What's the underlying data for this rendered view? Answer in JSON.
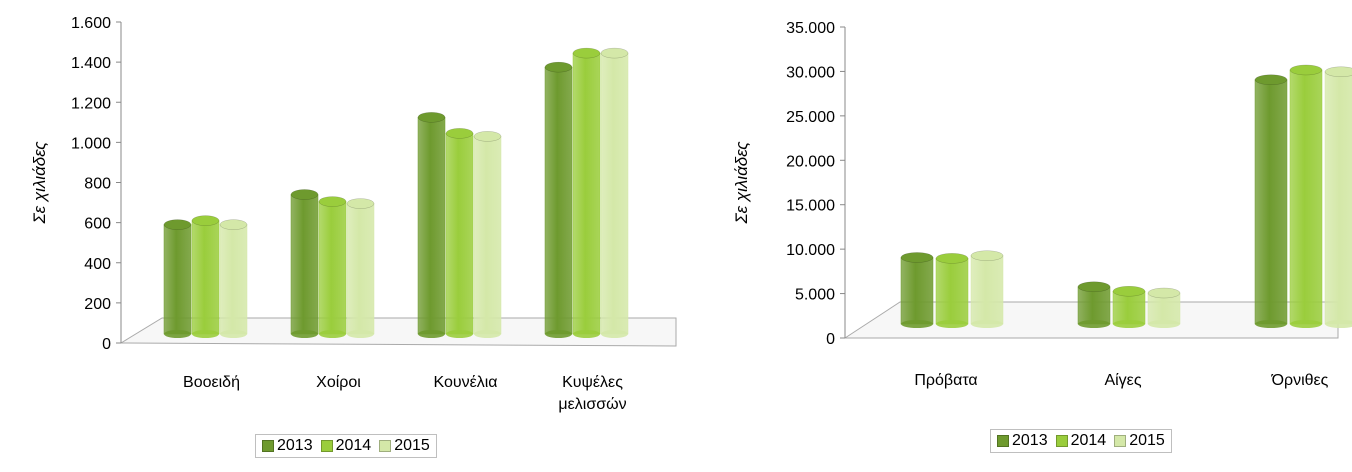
{
  "series_colors": [
    "#6e9a2e",
    "#9acd3c",
    "#d4e8a8"
  ],
  "chart_data": [
    {
      "type": "bar",
      "title": "",
      "xlabel": "",
      "ylabel": "Σε χιλιάδες",
      "categories": [
        [
          "Βοοειδή"
        ],
        [
          "Χοίροι"
        ],
        [
          "Κουνέλια"
        ],
        [
          "Κυψέλες",
          "μελισσών"
        ]
      ],
      "series": [
        {
          "name": "2013",
          "values": [
            565,
            715,
            1100,
            1350
          ]
        },
        {
          "name": "2014",
          "values": [
            585,
            680,
            1020,
            1420
          ]
        },
        {
          "name": "2015",
          "values": [
            565,
            670,
            1005,
            1420
          ]
        }
      ],
      "ylim": [
        0,
        1600
      ],
      "yticks": [
        0,
        200,
        400,
        600,
        800,
        1000,
        1200,
        1400,
        1600
      ],
      "ytick_labels": [
        "0",
        "200",
        "400",
        "600",
        "800",
        "1.000",
        "1.200",
        "1.400",
        "1.600"
      ],
      "legend_position": "bottom"
    },
    {
      "type": "bar",
      "title": "",
      "xlabel": "",
      "ylabel": "Σε χιλιάδες",
      "categories": [
        [
          "Πρόβατα"
        ],
        [
          "Αίγες"
        ],
        [
          "Όρνιθες"
        ]
      ],
      "series": [
        {
          "name": "2013",
          "values": [
            8500,
            5200,
            28500
          ]
        },
        {
          "name": "2014",
          "values": [
            8400,
            4700,
            29600
          ]
        },
        {
          "name": "2015",
          "values": [
            8700,
            4500,
            29400
          ]
        }
      ],
      "ylim": [
        0,
        35000
      ],
      "yticks": [
        0,
        5000,
        10000,
        15000,
        20000,
        25000,
        30000,
        35000
      ],
      "ytick_labels": [
        "0",
        "5.000",
        "10.000",
        "15.000",
        "20.000",
        "25.000",
        "30.000",
        "35.000"
      ],
      "legend_position": "bottom"
    }
  ]
}
